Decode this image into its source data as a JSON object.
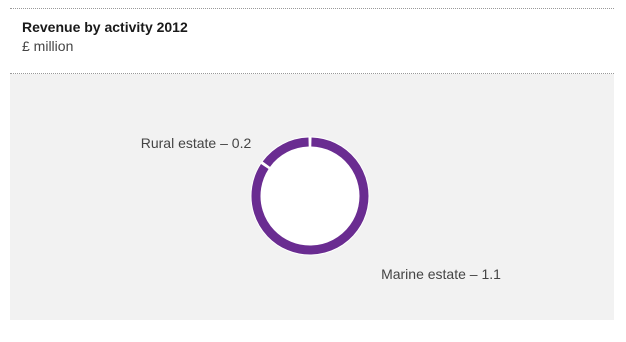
{
  "header": {
    "title": "Revenue by activity 2012",
    "subtitle": "£ million"
  },
  "chart_data": {
    "type": "pie",
    "donut": true,
    "title": "Revenue by activity 2012",
    "subtitle": "£ million",
    "categories": [
      "Rural estate",
      "Marine estate"
    ],
    "values": [
      0.2,
      1.1
    ],
    "labels": [
      "Rural estate – 0.2",
      "Marine estate – 1.1"
    ],
    "colors": [
      "#6a2c91",
      "#6a2c91"
    ],
    "background": "#f2f2f2"
  }
}
